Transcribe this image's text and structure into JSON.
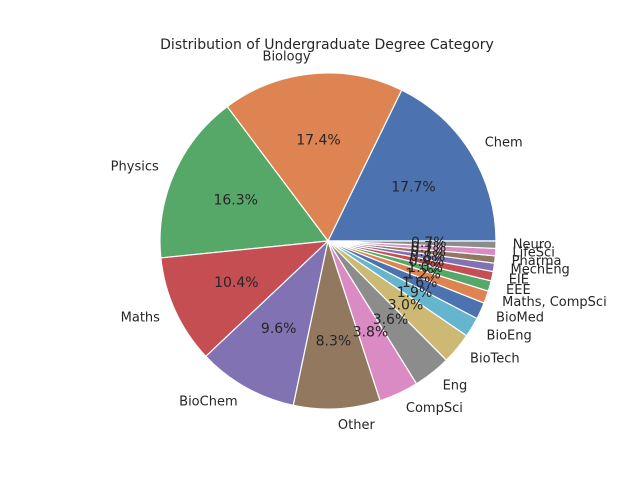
{
  "chart_data": {
    "type": "pie",
    "title": "Distribution of Undergraduate Degree Category",
    "slices": [
      {
        "label": "Chem",
        "value": 17.7,
        "pct_label": "17.7%",
        "color": "#4c72b0"
      },
      {
        "label": "Biology",
        "value": 17.4,
        "pct_label": "17.4%",
        "color": "#dd8452"
      },
      {
        "label": "Physics",
        "value": 16.3,
        "pct_label": "16.3%",
        "color": "#55a868"
      },
      {
        "label": "Maths",
        "value": 10.4,
        "pct_label": "10.4%",
        "color": "#c44e52"
      },
      {
        "label": "BioChem",
        "value": 9.6,
        "pct_label": "9.6%",
        "color": "#8172b3"
      },
      {
        "label": "Other",
        "value": 8.3,
        "pct_label": "8.3%",
        "color": "#937860"
      },
      {
        "label": "CompSci",
        "value": 3.8,
        "pct_label": "3.8%",
        "color": "#da8bc3"
      },
      {
        "label": "Eng",
        "value": 3.6,
        "pct_label": "3.6%",
        "color": "#8c8c8c"
      },
      {
        "label": "BioTech",
        "value": 3.0,
        "pct_label": "3.0%",
        "color": "#ccb974"
      },
      {
        "label": "BioEng",
        "value": 1.9,
        "pct_label": "1.9%",
        "color": "#64b5cd"
      },
      {
        "label": "BioMed",
        "value": 1.6,
        "pct_label": "1.6%",
        "color": "#4c72b0"
      },
      {
        "label": "Maths, CompSci",
        "value": 1.2,
        "pct_label": "1.2%",
        "color": "#dd8452"
      },
      {
        "label": "EEE",
        "value": 1.0,
        "pct_label": "1.0%",
        "color": "#55a868"
      },
      {
        "label": "EIE",
        "value": 0.9,
        "pct_label": "0.9%",
        "color": "#c44e52"
      },
      {
        "label": "MechEng",
        "value": 0.8,
        "pct_label": "0.8%",
        "color": "#8172b3"
      },
      {
        "label": "Pharma",
        "value": 0.7,
        "pct_label": "0.7%",
        "color": "#937860"
      },
      {
        "label": "LifeSci",
        "value": 0.7,
        "pct_label": "0.7%",
        "color": "#da8bc3"
      },
      {
        "label": "Neuro",
        "value": 0.7,
        "pct_label": "0.7%",
        "color": "#8c8c8c"
      }
    ]
  }
}
